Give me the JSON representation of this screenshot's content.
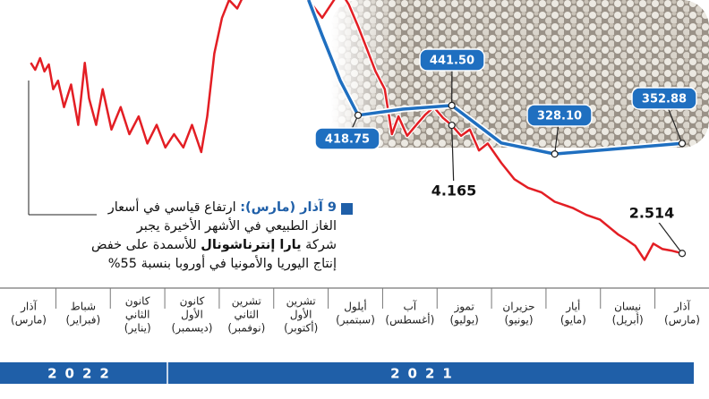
{
  "chart_data": {
    "type": "line",
    "categories": [
      [
        "آذار",
        "(مارس)"
      ],
      [
        "نيسان",
        "(أبريل)"
      ],
      [
        "أيار",
        "(مايو)"
      ],
      [
        "حزيران",
        "(يونيو)"
      ],
      [
        "تموز",
        "(يوليو)"
      ],
      [
        "آب",
        "(أغسطس)"
      ],
      [
        "أيلول",
        "(سبتمبر)"
      ],
      [
        "تشرين",
        "الأول",
        "(أكتوبر)"
      ],
      [
        "تشرين",
        "الثاني",
        "(نوفمبر)"
      ],
      [
        "كانون",
        "الأول",
        "(ديسمبر)"
      ],
      [
        "كانون",
        "الثاني",
        "(يناير)"
      ],
      [
        "شباط",
        "(فبراير)"
      ],
      [
        "آذار",
        "(مارس)"
      ]
    ],
    "years": [
      "2021",
      "2022"
    ],
    "xlim": [
      0,
      12
    ],
    "ylim": [
      2.09,
      5.78
    ],
    "y2lim": [
      19,
      688
    ],
    "series": [
      {
        "color": "#e31e24",
        "x": [
          0,
          0.2,
          0.36,
          0.53,
          0.69,
          0.86,
          1.02,
          1.18,
          1.51,
          1.76,
          2.01,
          2.34,
          2.58,
          2.83,
          3.08,
          3.32,
          3.57,
          3.73,
          3.9,
          4.06,
          4.23,
          4.39,
          4.56,
          4.72,
          4.88,
          5.05,
          5.21,
          5.33,
          5.46,
          5.63,
          5.79,
          5.95,
          6.12,
          6.28,
          6.61,
          6.86,
          7.11,
          7.6,
          8.01,
          8.17,
          8.32,
          8.45,
          8.59,
          8.72,
          8.83,
          9.0,
          9.16,
          9.33,
          9.49,
          9.65,
          9.82,
          9.98,
          10.15,
          10.31,
          10.48,
          10.64,
          10.76,
          10.89,
          10.97,
          11.09,
          11.22,
          11.35,
          11.46,
          11.55,
          11.63,
          11.71,
          11.79,
          11.88,
          11.96
        ],
        "values": [
          2.514,
          2.55,
          2.57,
          2.64,
          2.43,
          2.61,
          2.69,
          2.76,
          2.95,
          3.01,
          3.1,
          3.18,
          3.3,
          3.36,
          3.47,
          3.68,
          3.93,
          3.84,
          4.11,
          4.03,
          4.165,
          4.26,
          4.4,
          4.3,
          4.17,
          4.03,
          4.28,
          4.05,
          4.63,
          4.86,
          5.15,
          5.44,
          5.72,
          5.9,
          5.55,
          5.78,
          6.01,
          6.13,
          5.9,
          5.67,
          5.78,
          5.55,
          5.09,
          4.28,
          3.82,
          4.17,
          3.88,
          4.05,
          3.88,
          4.17,
          3.93,
          4.28,
          4.05,
          4.4,
          4.11,
          4.63,
          4.17,
          4.51,
          4.97,
          4.17,
          4.69,
          4.4,
          4.74,
          4.63,
          4.95,
          4.86,
          5.03,
          4.88,
          4.97
        ],
        "value_labels": [
          "2.514",
          null,
          null,
          null,
          null,
          null,
          null,
          null,
          null,
          null,
          null,
          null,
          null,
          null,
          null,
          null,
          null,
          null,
          null,
          null,
          "4.165",
          null,
          null,
          null,
          null,
          null,
          null,
          null,
          null,
          null,
          null,
          null,
          null,
          null,
          null,
          null,
          null,
          null,
          null,
          null,
          null,
          null,
          null,
          null,
          null,
          null,
          null,
          null,
          null,
          null,
          null,
          null,
          null,
          null,
          null,
          null,
          null,
          null,
          null,
          null,
          null,
          null,
          null,
          null,
          null,
          null,
          null,
          null,
          null
        ]
      },
      {
        "color": "#1f6fc0",
        "axis": "y2",
        "x": [
          0,
          2.34,
          3.32,
          4.23,
          5.13,
          5.95,
          6.28,
          6.61,
          6.86
        ],
        "values": [
          352.88,
          328.1,
          354,
          441.5,
          433,
          418.75,
          500,
          605,
          688
        ],
        "value_labels": [
          "352.88",
          "328.10",
          null,
          "441.50",
          null,
          "418.75",
          null,
          null,
          null
        ]
      }
    ],
    "annotation": [
      [
        "9 آذار (مارس):",
        " ارتفاع قياسي في أسعار"
      ],
      [
        "الغاز الطبيعي في الأشهر الأخيرة يجبر"
      ],
      [
        "شركة ",
        "يارا إنترناشونال",
        " للأسمدة على خفض"
      ],
      [
        "إنتاج اليوريا والأمونيا في أوروبا بنسبة 55%"
      ]
    ]
  }
}
